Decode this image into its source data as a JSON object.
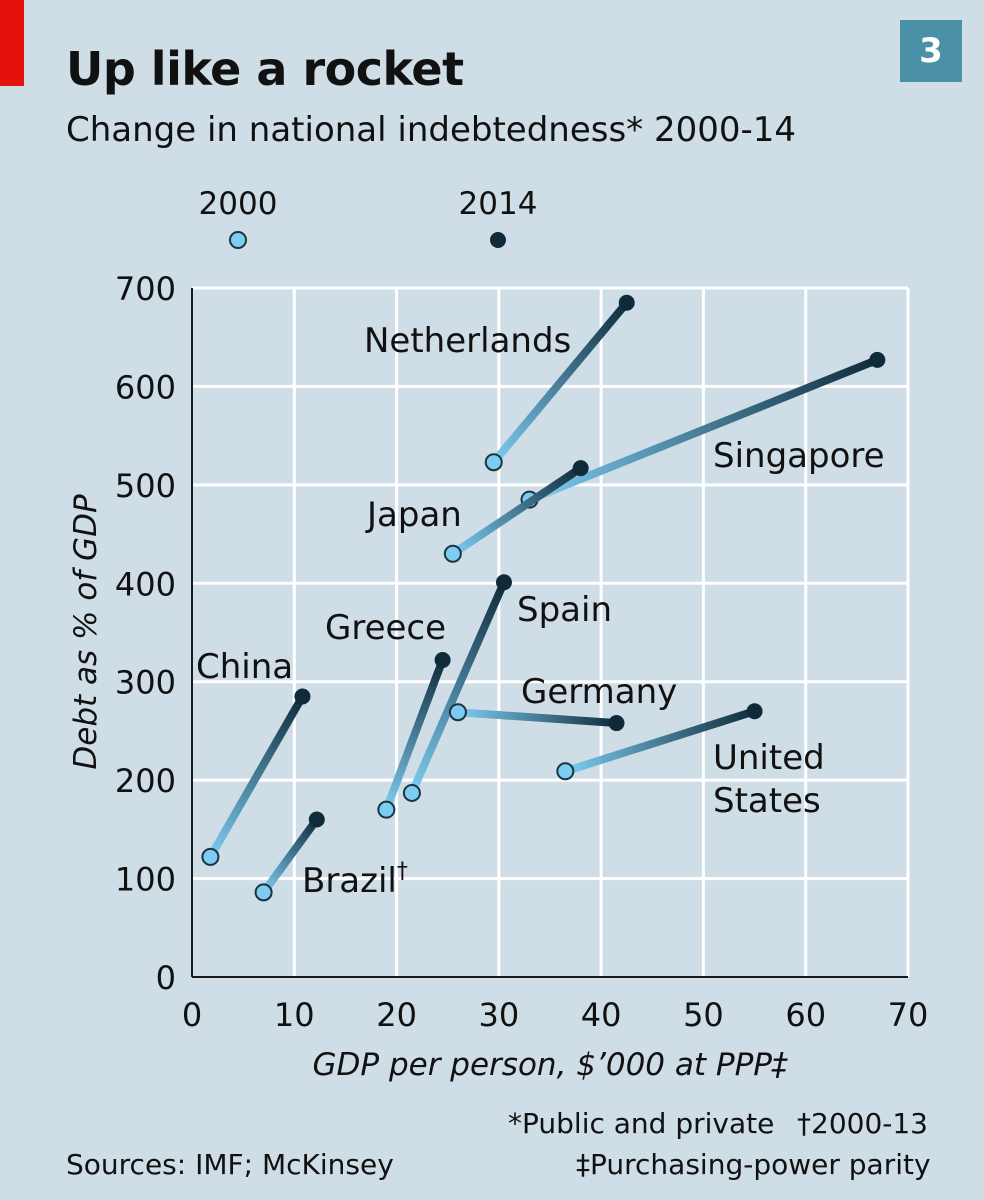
{
  "header": {
    "title": "Up like a rocket",
    "subtitle": "Change in national indebtedness* 2000-14",
    "badge": "3"
  },
  "legend": {
    "start_label": "2000",
    "end_label": "2014"
  },
  "footnotes": {
    "public_private": "*Public and private",
    "dagger": "†2000-13",
    "ddagger": "‡Purchasing-power parity",
    "sources": "Sources: IMF; McKinsey"
  },
  "colors": {
    "background": "#cfdde6",
    "start": "#7dcdf2",
    "end": "#0f2b3a",
    "accent_red": "#e3120b",
    "badge": "#4a91a8"
  },
  "chart_data": {
    "type": "scatter",
    "subtype": "dumbbell-arrows",
    "xlabel": "GDP per person, $’000 at PPP‡",
    "ylabel": "Debt as % of GDP",
    "xlim": [
      0,
      70
    ],
    "ylim": [
      0,
      700
    ],
    "xticks": [
      0,
      10,
      20,
      30,
      40,
      50,
      60,
      70
    ],
    "yticks": [
      0,
      100,
      200,
      300,
      400,
      500,
      600,
      700
    ],
    "grid": true,
    "series": [
      {
        "name": "Netherlands",
        "x2000": 29.5,
        "y2000": 523,
        "x2014": 42.5,
        "y2014": 685
      },
      {
        "name": "Singapore",
        "x2000": 33,
        "y2000": 485,
        "x2014": 67,
        "y2014": 627
      },
      {
        "name": "Japan",
        "x2000": 25.5,
        "y2000": 430,
        "x2014": 38,
        "y2014": 517
      },
      {
        "name": "Spain",
        "x2000": 21.5,
        "y2000": 187,
        "x2014": 30.5,
        "y2014": 401
      },
      {
        "name": "Greece",
        "x2000": 19,
        "y2000": 170,
        "x2014": 24.5,
        "y2014": 322
      },
      {
        "name": "Germany",
        "x2000": 26,
        "y2000": 269,
        "x2014": 41.5,
        "y2014": 258
      },
      {
        "name": "United States",
        "x2000": 36.5,
        "y2000": 209,
        "x2014": 55,
        "y2014": 270
      },
      {
        "name": "China",
        "x2000": 1.8,
        "y2000": 122,
        "x2014": 10.8,
        "y2014": 285
      },
      {
        "name": "Brazil†",
        "x2000": 7,
        "y2000": 86,
        "x2014": 12.2,
        "y2014": 160
      }
    ]
  },
  "country_labels": {
    "netherlands": "Netherlands",
    "singapore": "Singapore",
    "japan": "Japan",
    "spain": "Spain",
    "greece": "Greece",
    "germany": "Germany",
    "united_states_1": "United",
    "united_states_2": "States",
    "china": "China",
    "brazil": "Brazil",
    "brazil_mark": "†"
  }
}
